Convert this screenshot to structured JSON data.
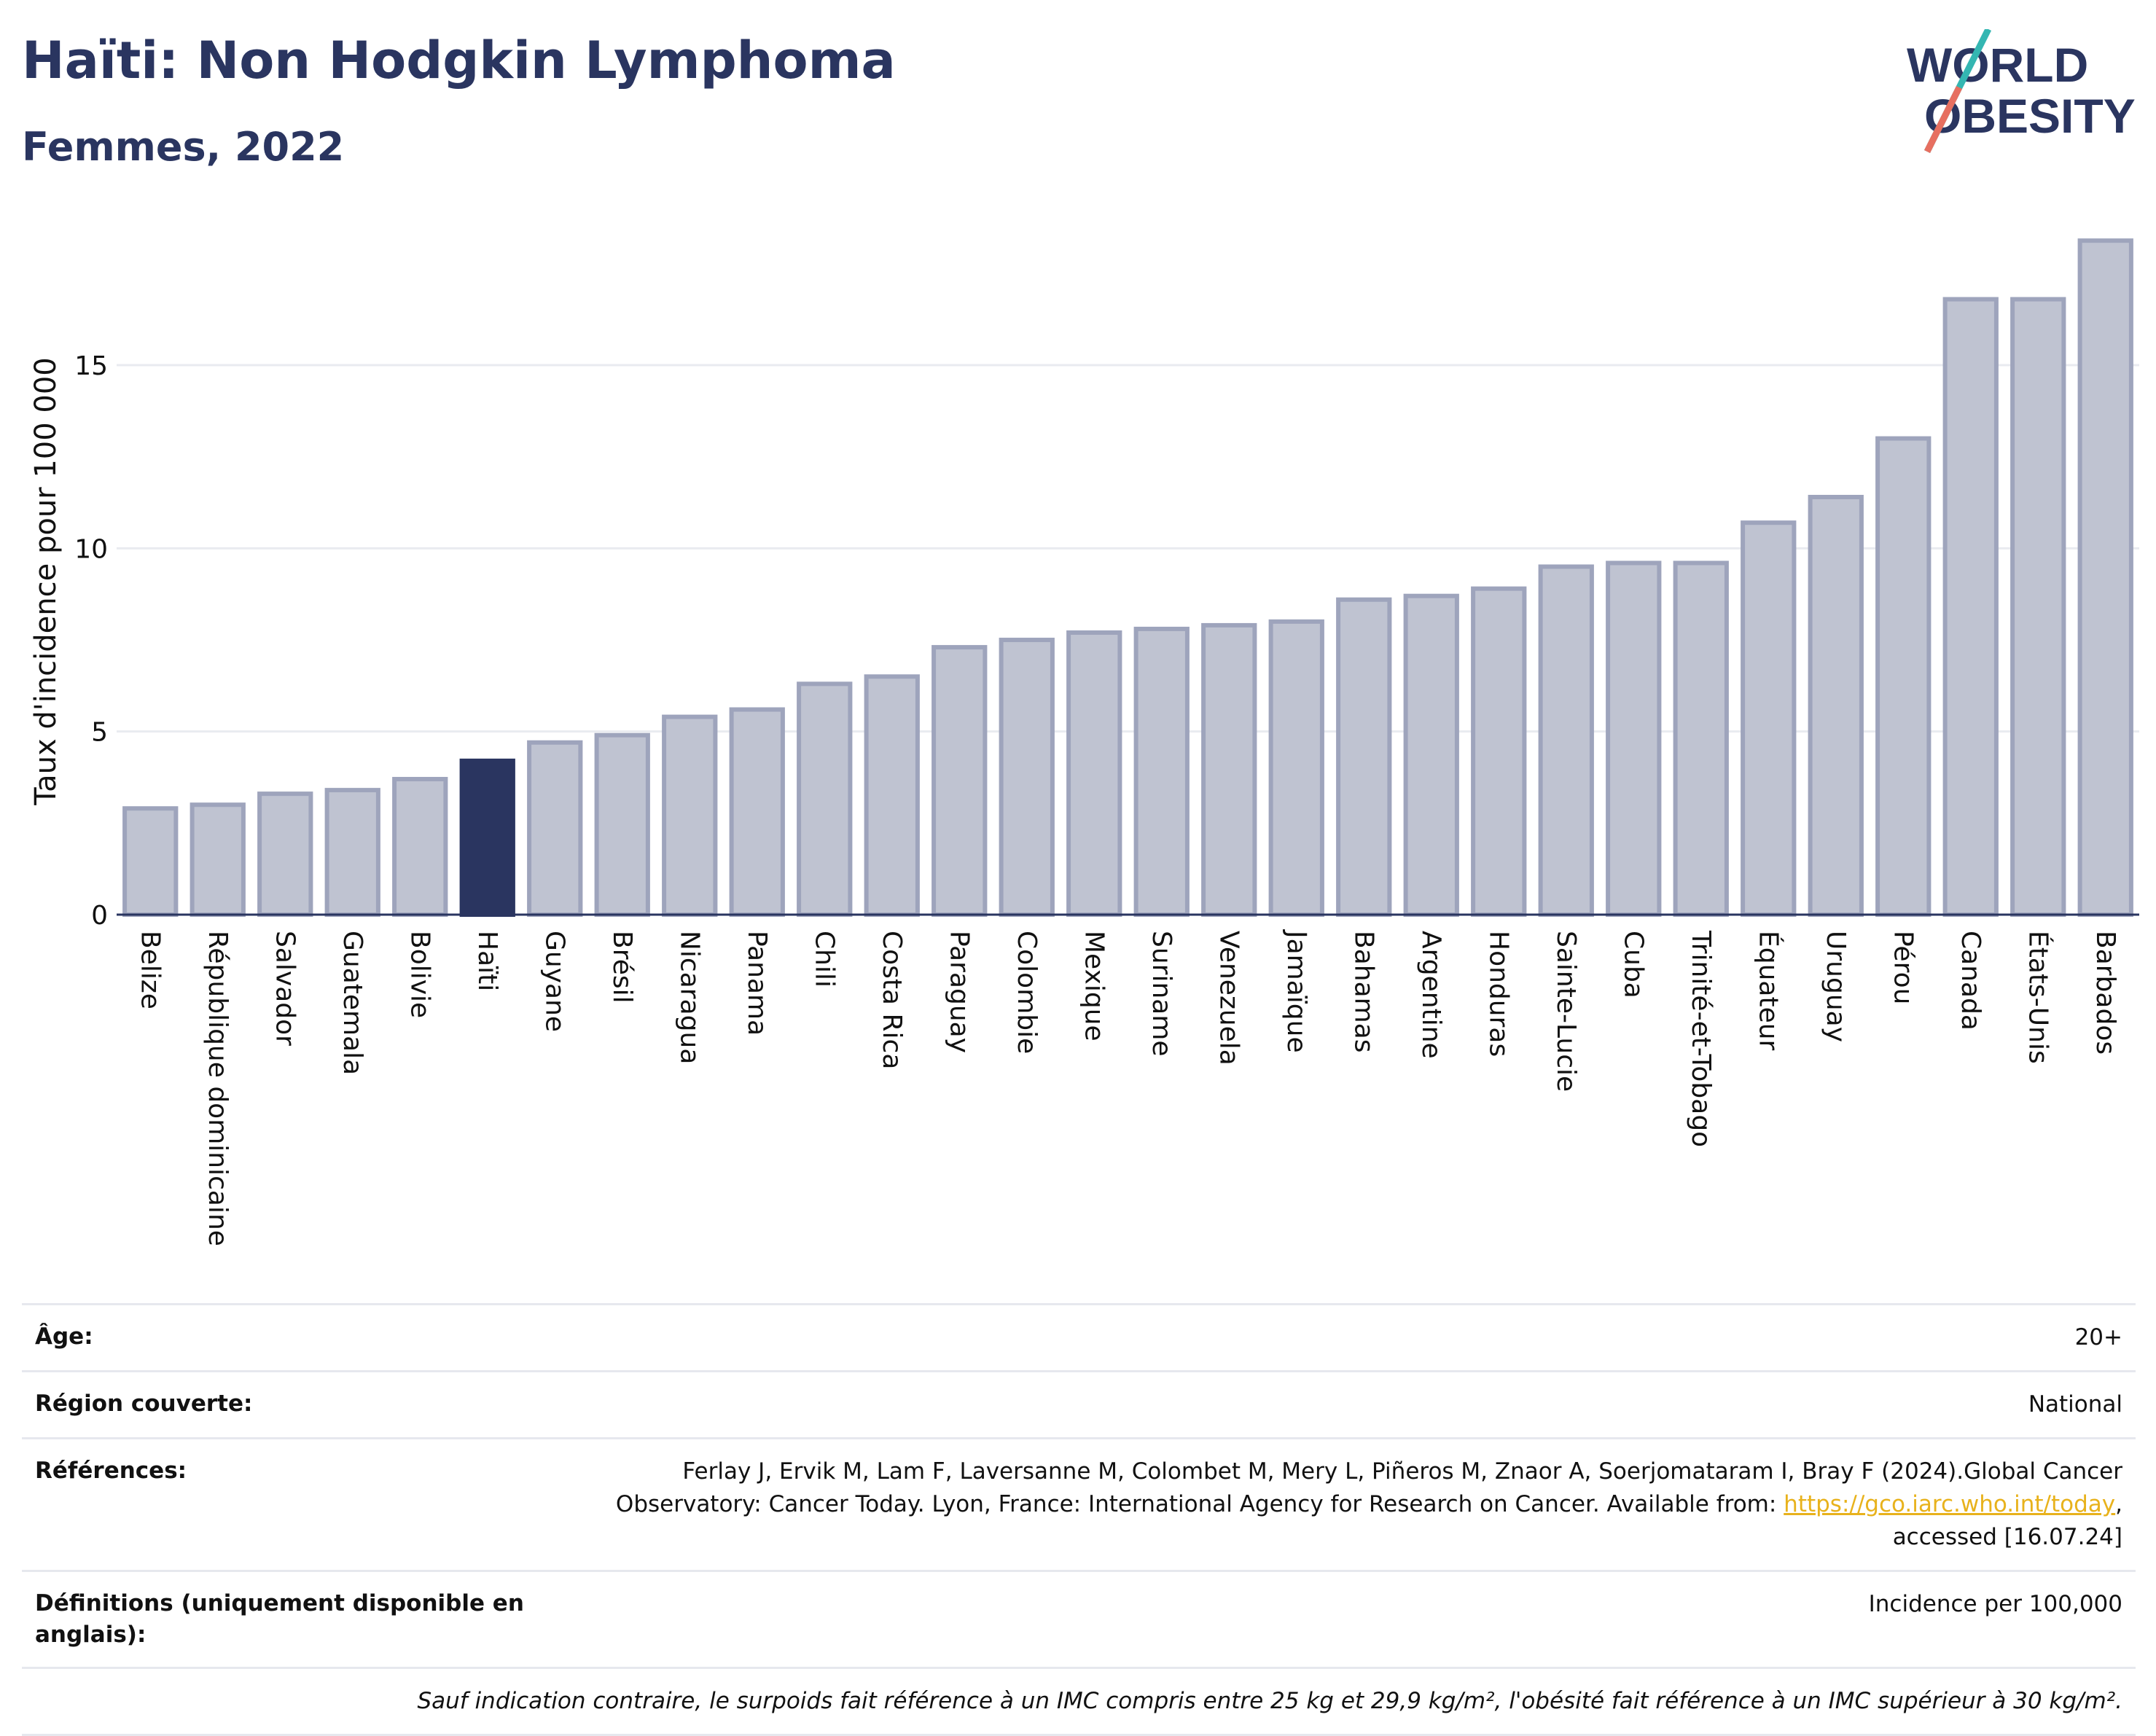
{
  "header": {
    "title": "Haïti: Non Hodgkin Lymphoma",
    "subtitle": "Femmes, 2022"
  },
  "logo": {
    "line1": "WORLD",
    "line2": "OBESITY"
  },
  "chart_data": {
    "type": "bar",
    "ylabel": "Taux d'incidence pour 100 000",
    "ylim": [
      0,
      19
    ],
    "yticks": [
      0,
      5,
      10,
      15
    ],
    "grid": true,
    "highlight": "Haïti",
    "colors": {
      "bar": "#bfc3d1",
      "bar_border": "#9ea4bc",
      "highlight": "#2a3560",
      "grid": "#e9ebf0"
    },
    "categories": [
      "Belize",
      "République dominicaine",
      "Salvador",
      "Guatemala",
      "Bolivie",
      "Haïti",
      "Guyane",
      "Brésil",
      "Nicaragua",
      "Panama",
      "Chili",
      "Costa Rica",
      "Paraguay",
      "Colombie",
      "Mexique",
      "Suriname",
      "Venezuela",
      "Jamaïque",
      "Bahamas",
      "Argentine",
      "Honduras",
      "Sainte-Lucie",
      "Cuba",
      "Trinité-et-Tobago",
      "Équateur",
      "Uruguay",
      "Pérou",
      "Canada",
      "États-Unis",
      "Barbados"
    ],
    "values": [
      2.9,
      3.0,
      3.3,
      3.4,
      3.7,
      4.2,
      4.7,
      4.9,
      5.4,
      5.6,
      6.3,
      6.5,
      7.3,
      7.5,
      7.7,
      7.8,
      7.9,
      8.0,
      8.6,
      8.7,
      8.9,
      9.5,
      9.6,
      9.6,
      10.7,
      11.4,
      13.0,
      16.8,
      16.8,
      18.4
    ]
  },
  "info": {
    "age_label": "Âge:",
    "age_value": "20+",
    "region_label": "Région couverte:",
    "region_value": "National",
    "references_label": "Références:",
    "references_text_1": "Ferlay J, Ervik M, Lam F, Laversanne M, Colombet M, Mery L, Piñeros M, Znaor A, Soerjomataram I, Bray F (2024).Global Cancer",
    "references_text_2": "Observatory: Cancer Today. Lyon, France: International Agency for Research on Cancer. Available from:",
    "references_link": "https://gco.iarc.who.int/today",
    "references_text_3": "accessed [16.07.24]",
    "definitions_label": "Définitions (uniquement disponible en anglais):",
    "definitions_value": "Incidence per 100,000",
    "note": "Sauf indication contraire, le surpoids fait référence à un IMC compris entre 25 kg et 29,9 kg/m², l'obésité fait référence à un IMC supérieur à 30 kg/m²."
  }
}
